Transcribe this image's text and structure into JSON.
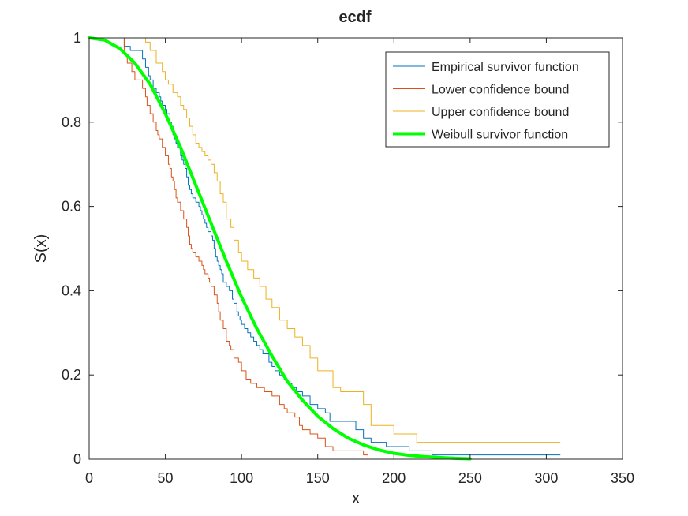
{
  "chart_data": {
    "type": "line",
    "title": "ecdf",
    "xlabel": "x",
    "ylabel": "S(x)",
    "xlim": [
      0,
      350
    ],
    "ylim": [
      0,
      1
    ],
    "xticks": [
      "0",
      "50",
      "100",
      "150",
      "200",
      "250",
      "300",
      "350"
    ],
    "yticks": [
      "0",
      "0.2",
      "0.4",
      "0.6",
      "0.8",
      "1"
    ],
    "grid": false,
    "legend_position": "top-right",
    "series": [
      {
        "name": "Empirical survivor function",
        "color": "#0072bd",
        "style": "step",
        "x": [
          0,
          23,
          27,
          32,
          35,
          37,
          39,
          40,
          42,
          44,
          46,
          47,
          48,
          50,
          51,
          53,
          54,
          55,
          56,
          57,
          58,
          60,
          61,
          62,
          63,
          64,
          65,
          66,
          67,
          68,
          70,
          72,
          73,
          74,
          75,
          76,
          77,
          78,
          80,
          81,
          82,
          83,
          84,
          85,
          86,
          87,
          88,
          90,
          92,
          94,
          95,
          97,
          98,
          99,
          100,
          102,
          104,
          106,
          108,
          110,
          112,
          114,
          118,
          120,
          122,
          125,
          128,
          130,
          133,
          136,
          140,
          145,
          150,
          155,
          158,
          160,
          165,
          175,
          180,
          185,
          195,
          210,
          225,
          309
        ],
        "y": [
          1.0,
          0.98,
          0.97,
          0.97,
          0.95,
          0.93,
          0.91,
          0.9,
          0.88,
          0.87,
          0.86,
          0.85,
          0.84,
          0.83,
          0.82,
          0.8,
          0.79,
          0.77,
          0.76,
          0.75,
          0.74,
          0.72,
          0.71,
          0.7,
          0.69,
          0.67,
          0.65,
          0.64,
          0.63,
          0.62,
          0.61,
          0.6,
          0.59,
          0.58,
          0.57,
          0.56,
          0.55,
          0.54,
          0.53,
          0.52,
          0.5,
          0.48,
          0.47,
          0.46,
          0.45,
          0.44,
          0.42,
          0.41,
          0.4,
          0.38,
          0.37,
          0.35,
          0.34,
          0.33,
          0.32,
          0.31,
          0.3,
          0.29,
          0.28,
          0.27,
          0.26,
          0.25,
          0.23,
          0.22,
          0.21,
          0.2,
          0.19,
          0.18,
          0.17,
          0.16,
          0.15,
          0.13,
          0.12,
          0.11,
          0.09,
          0.09,
          0.09,
          0.07,
          0.05,
          0.04,
          0.03,
          0.02,
          0.01,
          0.01
        ]
      },
      {
        "name": "Lower confidence bound",
        "color": "#d95319",
        "style": "step",
        "x": [
          0,
          23,
          25,
          28,
          30,
          35,
          37,
          38,
          40,
          42,
          44,
          45,
          46,
          48,
          50,
          52,
          53,
          54,
          55,
          56,
          57,
          58,
          60,
          62,
          64,
          65,
          66,
          67,
          68,
          70,
          72,
          74,
          75,
          76,
          78,
          79,
          80,
          82,
          84,
          85,
          86,
          88,
          90,
          92,
          93,
          95,
          98,
          100,
          103,
          106,
          110,
          115,
          120,
          125,
          128,
          130,
          135,
          138,
          140,
          145,
          150,
          155,
          160,
          170,
          180,
          183
        ],
        "y": [
          1.0,
          0.96,
          0.94,
          0.92,
          0.9,
          0.88,
          0.86,
          0.84,
          0.82,
          0.8,
          0.78,
          0.77,
          0.76,
          0.74,
          0.72,
          0.7,
          0.69,
          0.67,
          0.66,
          0.64,
          0.62,
          0.61,
          0.59,
          0.57,
          0.55,
          0.53,
          0.51,
          0.5,
          0.49,
          0.48,
          0.47,
          0.46,
          0.45,
          0.44,
          0.43,
          0.42,
          0.41,
          0.39,
          0.37,
          0.35,
          0.33,
          0.31,
          0.28,
          0.27,
          0.26,
          0.24,
          0.23,
          0.21,
          0.19,
          0.18,
          0.17,
          0.16,
          0.15,
          0.13,
          0.12,
          0.11,
          0.1,
          0.08,
          0.07,
          0.06,
          0.05,
          0.03,
          0.02,
          0.02,
          0.01,
          0.0
        ]
      },
      {
        "name": "Upper confidence bound",
        "color": "#edb120",
        "style": "step",
        "x": [
          0,
          37,
          40,
          44,
          48,
          50,
          52,
          55,
          58,
          60,
          62,
          64,
          66,
          68,
          70,
          72,
          74,
          76,
          78,
          80,
          82,
          84,
          86,
          88,
          90,
          93,
          95,
          98,
          100,
          104,
          108,
          112,
          116,
          120,
          125,
          130,
          135,
          140,
          145,
          150,
          160,
          165,
          180,
          185,
          200,
          215,
          309
        ],
        "y": [
          1.0,
          0.99,
          0.97,
          0.94,
          0.92,
          0.9,
          0.89,
          0.87,
          0.86,
          0.84,
          0.83,
          0.81,
          0.79,
          0.77,
          0.75,
          0.74,
          0.73,
          0.72,
          0.71,
          0.7,
          0.68,
          0.66,
          0.63,
          0.61,
          0.57,
          0.55,
          0.52,
          0.49,
          0.47,
          0.45,
          0.43,
          0.41,
          0.38,
          0.36,
          0.33,
          0.31,
          0.29,
          0.27,
          0.24,
          0.21,
          0.17,
          0.16,
          0.13,
          0.08,
          0.06,
          0.04,
          0.04
        ]
      },
      {
        "name": "Weibull survivor function",
        "color": "#00ff00",
        "style": "curve",
        "x": [
          0,
          10,
          20,
          30,
          40,
          50,
          60,
          70,
          80,
          90,
          100,
          110,
          120,
          130,
          140,
          150,
          160,
          170,
          180,
          190,
          200,
          210,
          220,
          230,
          240,
          250
        ],
        "y": [
          1.0,
          0.995,
          0.975,
          0.94,
          0.89,
          0.82,
          0.74,
          0.65,
          0.56,
          0.47,
          0.385,
          0.31,
          0.245,
          0.185,
          0.14,
          0.102,
          0.073,
          0.05,
          0.034,
          0.022,
          0.014,
          0.009,
          0.006,
          0.004,
          0.002,
          0.001
        ]
      }
    ]
  }
}
